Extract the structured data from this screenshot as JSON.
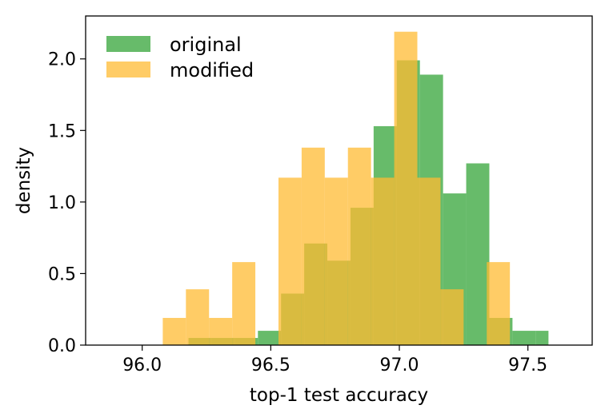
{
  "chart_data": {
    "type": "histogram",
    "xlabel": "top-1 test accuracy",
    "ylabel": "density",
    "xlim": [
      95.78,
      97.75
    ],
    "ylim": [
      0,
      2.3
    ],
    "xticks": [
      96.0,
      96.5,
      97.0,
      97.5
    ],
    "xtick_labels": [
      "96.0",
      "96.5",
      "97.0",
      "97.5"
    ],
    "yticks": [
      0.0,
      0.5,
      1.0,
      1.5,
      2.0
    ],
    "ytick_labels": [
      "0.0",
      "0.5",
      "1.0",
      "1.5",
      "2.0"
    ],
    "legend_position": "top-left",
    "grid": false,
    "series": [
      {
        "name": "original",
        "color": "#4caf50",
        "opacity": 0.85,
        "bin_edges": [
          96.18,
          96.27,
          96.36,
          96.45,
          96.54,
          96.63,
          96.72,
          96.81,
          96.9,
          96.99,
          97.08,
          97.17,
          97.26,
          97.35,
          97.44,
          97.53,
          97.58
        ],
        "values": [
          0.05,
          0.05,
          0.05,
          0.1,
          0.36,
          0.71,
          0.59,
          0.96,
          1.53,
          1.99,
          1.89,
          1.06,
          1.27,
          0.19,
          0.1,
          0.1
        ]
      },
      {
        "name": "modified",
        "color": "#ffbb33",
        "opacity": 0.75,
        "bin_edges": [
          96.08,
          96.17,
          96.26,
          96.35,
          96.44,
          96.53,
          96.62,
          96.71,
          96.8,
          96.89,
          96.98,
          97.07,
          97.16,
          97.25,
          97.34,
          97.43
        ],
        "values": [
          0.19,
          0.39,
          0.19,
          0.58,
          0.0,
          1.17,
          1.38,
          1.17,
          1.38,
          1.17,
          2.19,
          1.17,
          0.39,
          0.0,
          0.58
        ]
      }
    ]
  }
}
